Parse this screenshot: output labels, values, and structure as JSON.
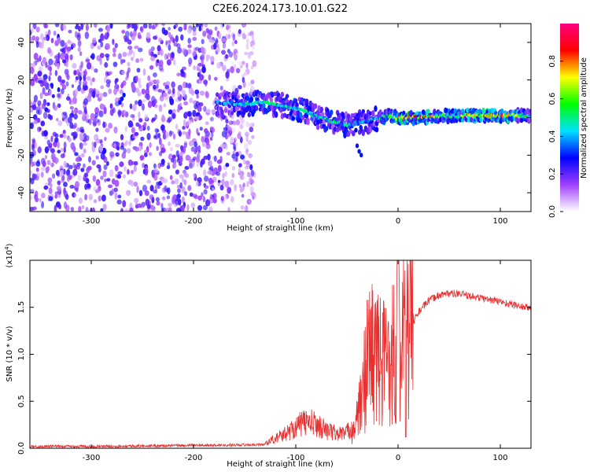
{
  "title": "C2E6.2024.173.10.01.G22",
  "chart_data": [
    {
      "type": "heatmap",
      "xlabel": "Height of straight line (km)",
      "ylabel": "Frequency (Hz)",
      "xlim": [
        -360,
        130
      ],
      "ylim": [
        -50,
        50
      ],
      "x_ticks": [
        -300,
        -200,
        -100,
        0,
        100
      ],
      "x_tick_labels": [
        "-300",
        "-200",
        "-100",
        "0",
        "100"
      ],
      "y_ticks": [
        -40,
        -20,
        0,
        20,
        40
      ],
      "y_tick_labels": [
        "-40",
        "-20",
        "0",
        "20",
        "40"
      ],
      "colorbar": {
        "label": "Normalized spectral amplitude",
        "range": [
          0,
          1
        ],
        "ticks": [
          0.0,
          0.2,
          0.4,
          0.6,
          0.8
        ],
        "tick_labels": [
          "0.0",
          "0.2",
          "0.4",
          "0.6",
          "0.8"
        ],
        "colors": [
          "#ffffff",
          "#a040ff",
          "#0000ff",
          "#00e0ff",
          "#00ff00",
          "#ffff00",
          "#ff0000",
          "#ff0080"
        ]
      },
      "ridge": [
        {
          "x": -270,
          "freq": 10,
          "amp": 0.4
        },
        {
          "x": -175,
          "freq": 8,
          "amp": 0.35
        },
        {
          "x": -150,
          "freq": 7,
          "amp": 0.45
        },
        {
          "x": -130,
          "freq": 8,
          "amp": 0.5
        },
        {
          "x": -100,
          "freq": 5,
          "amp": 0.5
        },
        {
          "x": -70,
          "freq": -1,
          "amp": 0.45
        },
        {
          "x": -50,
          "freq": -4,
          "amp": 0.45
        },
        {
          "x": -30,
          "freq": -2,
          "amp": 0.4
        },
        {
          "x": -10,
          "freq": 1,
          "amp": 0.5
        },
        {
          "x": 0,
          "freq": 0,
          "amp": 0.7
        },
        {
          "x": 20,
          "freq": 0,
          "amp": 0.85
        },
        {
          "x": 50,
          "freq": 1,
          "amp": 0.5
        },
        {
          "x": 90,
          "freq": 1,
          "amp": 0.8
        },
        {
          "x": 130,
          "freq": 1,
          "amp": 0.5
        }
      ],
      "noise_region_x": [
        -360,
        -140
      ]
    },
    {
      "type": "line",
      "xlabel": "Height of straight line (km)",
      "ylabel": "SNR (10 * v/v)",
      "y_multiplier_label": "(x10",
      "y_multiplier_exp": "4",
      "xlim": [
        -360,
        130
      ],
      "ylim": [
        0,
        2.0
      ],
      "x_ticks": [
        -300,
        -200,
        -100,
        0,
        100
      ],
      "x_tick_labels": [
        "-300",
        "-200",
        "-100",
        "0",
        "100"
      ],
      "y_ticks": [
        0.0,
        0.5,
        1.0,
        1.5
      ],
      "y_tick_labels": [
        "0.0",
        "0.5",
        "1.0",
        "1.5"
      ],
      "color": "#e83030",
      "series": [
        {
          "x": [
            -360,
            -300,
            -200,
            -130,
            -120,
            -110,
            -100,
            -90,
            -80,
            -70,
            -60,
            -50,
            -45,
            -40,
            -35,
            -30,
            -25,
            -20,
            -15,
            -10,
            -5,
            0,
            5,
            10,
            20,
            30,
            40,
            50,
            60,
            80,
            100,
            115,
            130
          ],
          "values": [
            0.02,
            0.02,
            0.03,
            0.04,
            0.08,
            0.12,
            0.18,
            0.22,
            0.2,
            0.15,
            0.12,
            0.13,
            0.18,
            0.3,
            0.55,
            1.0,
            1.05,
            0.95,
            0.9,
            1.0,
            1.05,
            1.1,
            1.15,
            1.25,
            1.45,
            1.57,
            1.63,
            1.65,
            1.64,
            1.6,
            1.56,
            1.52,
            1.49
          ]
        }
      ]
    }
  ]
}
